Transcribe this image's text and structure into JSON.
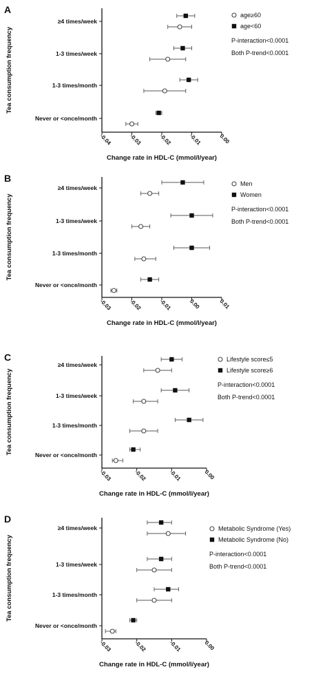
{
  "chart_data": [
    {
      "type": "scatter",
      "panel": "A",
      "categories": [
        "≥4 times/week",
        "1-3 times/week",
        "1-3 times/month",
        "Never or <once/month"
      ],
      "xlabel": "Change rate in HDL-C (mmol/l/year)",
      "ylabel": "Tea consumption frequency",
      "xlim": [
        -0.04,
        0.0
      ],
      "xticks": [
        "-0.04",
        "-0.03",
        "-0.02",
        "-0.01",
        "0.00"
      ],
      "xtick_values": [
        -0.04,
        -0.03,
        -0.02,
        -0.01,
        0.0
      ],
      "legend_position": "top-right",
      "grid": false,
      "annotations": [
        "P-interaction<0.0001",
        "Both P-trend<0.0001"
      ],
      "series": [
        {
          "name": "age≥60",
          "marker": "open-circle",
          "values": [
            -0.014,
            -0.018,
            -0.019,
            -0.03
          ],
          "lower": [
            -0.018,
            -0.024,
            -0.026,
            -0.032
          ],
          "upper": [
            -0.01,
            -0.012,
            -0.012,
            -0.028
          ]
        },
        {
          "name": "age<60",
          "marker": "filled-square",
          "values": [
            -0.012,
            -0.013,
            -0.011,
            -0.021
          ],
          "lower": [
            -0.015,
            -0.016,
            -0.014,
            -0.022
          ],
          "upper": [
            -0.009,
            -0.01,
            -0.008,
            -0.02
          ]
        }
      ]
    },
    {
      "type": "scatter",
      "panel": "B",
      "categories": [
        "≥4 times/week",
        "1-3 times/week",
        "1-3 times/month",
        "Never or <once/month"
      ],
      "xlabel": "Change rate in HDL-C (mmol/l/year)",
      "ylabel": "Tea consumption frequency",
      "xlim": [
        -0.03,
        0.01
      ],
      "xticks": [
        "-0.03",
        "-0.02",
        "-0.01",
        "0.00",
        "0.01"
      ],
      "xtick_values": [
        -0.03,
        -0.02,
        -0.01,
        0.0,
        0.01
      ],
      "legend_position": "top-right",
      "grid": false,
      "annotations": [
        "P-interaction<0.0001",
        "Both P-trend<0.0001"
      ],
      "series": [
        {
          "name": "Men",
          "marker": "open-circle",
          "values": [
            -0.014,
            -0.017,
            -0.016,
            -0.026
          ],
          "lower": [
            -0.017,
            -0.02,
            -0.019,
            -0.027
          ],
          "upper": [
            -0.011,
            -0.014,
            -0.012,
            -0.025
          ]
        },
        {
          "name": "Women",
          "marker": "filled-square",
          "values": [
            -0.003,
            0.0,
            0.0,
            -0.014
          ],
          "lower": [
            -0.01,
            -0.007,
            -0.006,
            -0.017
          ],
          "upper": [
            0.004,
            0.007,
            0.006,
            -0.011
          ]
        }
      ]
    },
    {
      "type": "scatter",
      "panel": "C",
      "categories": [
        "≥4 times/week",
        "1-3 times/week",
        "1-3 times/month",
        "Never or <once/month"
      ],
      "xlabel": "Change rate in HDL-C (mmol/l/year)",
      "ylabel": "Tea consumption frequency",
      "xlim": [
        -0.03,
        0.0
      ],
      "xticks": [
        "-0.03",
        "-0.02",
        "-0.01",
        "0.00"
      ],
      "xtick_values": [
        -0.03,
        -0.02,
        -0.01,
        0.0
      ],
      "legend_position": "top-right",
      "grid": false,
      "annotations": [
        "P-interaction<0.0001",
        "Both P-trend<0.0001"
      ],
      "series": [
        {
          "name": "Lifestyle score≤5",
          "marker": "open-circle",
          "values": [
            -0.014,
            -0.018,
            -0.018,
            -0.026
          ],
          "lower": [
            -0.018,
            -0.021,
            -0.022,
            -0.027
          ],
          "upper": [
            -0.01,
            -0.014,
            -0.014,
            -0.024
          ]
        },
        {
          "name": "Lifestyle score≥6",
          "marker": "filled-square",
          "values": [
            -0.01,
            -0.009,
            -0.005,
            -0.021
          ],
          "lower": [
            -0.013,
            -0.013,
            -0.009,
            -0.022
          ],
          "upper": [
            -0.007,
            -0.005,
            -0.001,
            -0.019
          ]
        }
      ]
    },
    {
      "type": "scatter",
      "panel": "D",
      "categories": [
        "≥4 times/week",
        "1-3 times/week",
        "1-3 times/month",
        "Never or <once/month"
      ],
      "xlabel": "Change rate in HDL-C (mmol/l/year)",
      "ylabel": "Tea consumption frequency",
      "xlim": [
        -0.03,
        0.0
      ],
      "xticks": [
        "-0.03",
        "-0.02",
        "-0.01",
        "0.00"
      ],
      "xtick_values": [
        -0.03,
        -0.02,
        -0.01,
        0.0
      ],
      "legend_position": "top-right",
      "grid": false,
      "annotations": [
        "P-interaction<0.0001",
        "Both P-trend<0.0001"
      ],
      "series": [
        {
          "name": "Metabolic Syndrome (Yes)",
          "marker": "open-circle",
          "values": [
            -0.011,
            -0.015,
            -0.015,
            -0.027
          ],
          "lower": [
            -0.017,
            -0.02,
            -0.02,
            -0.029
          ],
          "upper": [
            -0.006,
            -0.01,
            -0.01,
            -0.026
          ]
        },
        {
          "name": "Metabolic Syndrome (No)",
          "marker": "filled-square",
          "values": [
            -0.013,
            -0.013,
            -0.011,
            -0.021
          ],
          "lower": [
            -0.017,
            -0.017,
            -0.015,
            -0.022
          ],
          "upper": [
            -0.01,
            -0.01,
            -0.008,
            -0.02
          ]
        }
      ]
    }
  ]
}
